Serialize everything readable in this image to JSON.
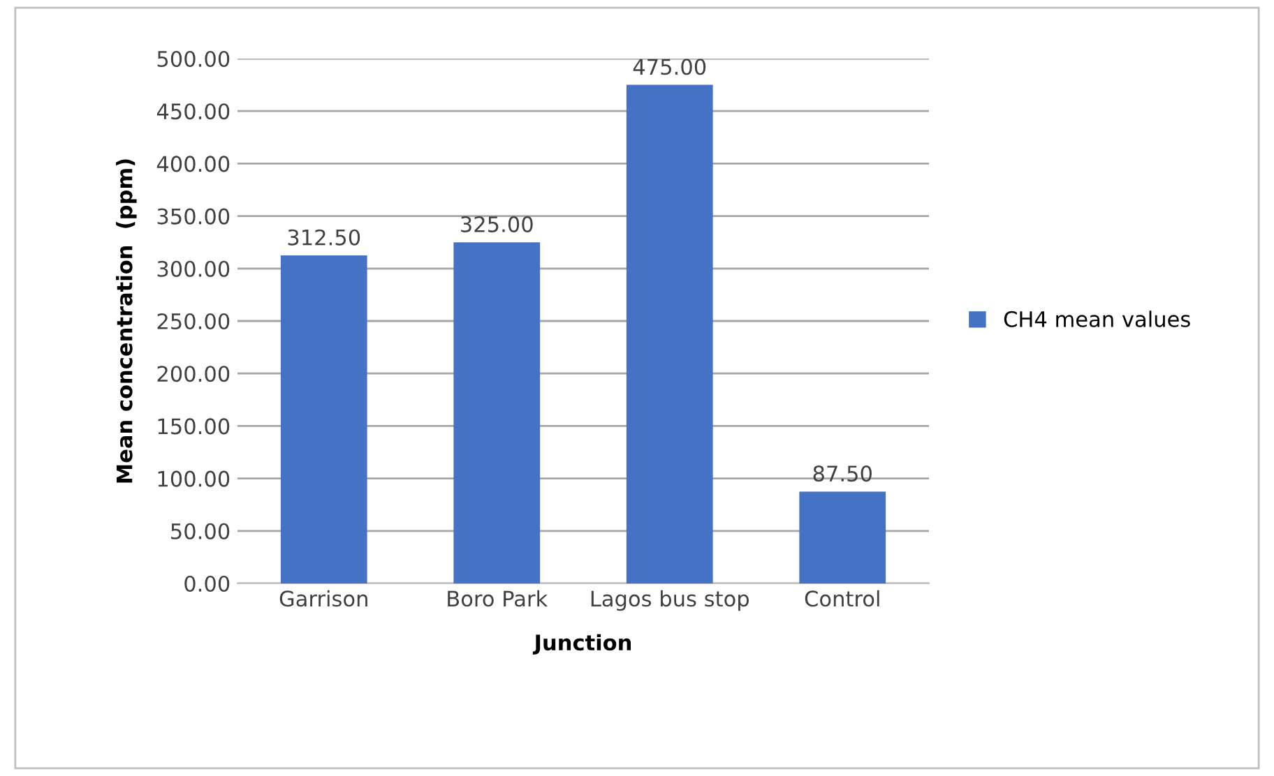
{
  "chart_data": {
    "type": "bar",
    "xlabel": "Junction",
    "ylabel": "Mean concentration  (ppm)",
    "categories": [
      "Garrison",
      "Boro Park",
      "Lagos bus stop",
      "Control"
    ],
    "series": [
      {
        "name": "CH4 mean values",
        "color": "#4472c4",
        "values": [
          312.5,
          325,
          475,
          87.5
        ],
        "value_labels": [
          "312.50",
          "325.00",
          "475.00",
          "87.50"
        ]
      }
    ],
    "ylim": [
      0,
      500
    ],
    "yticks": [
      {
        "value": 0,
        "label": "0.00"
      },
      {
        "value": 50,
        "label": "50.00"
      },
      {
        "value": 100,
        "label": "100.00"
      },
      {
        "value": 150,
        "label": "150.00"
      },
      {
        "value": 200,
        "label": "200.00"
      },
      {
        "value": 250,
        "label": "250.00"
      },
      {
        "value": 300,
        "label": "300.00"
      },
      {
        "value": 350,
        "label": "350.00"
      },
      {
        "value": 400,
        "label": "400.00"
      },
      {
        "value": 450,
        "label": "450.00"
      },
      {
        "value": 500,
        "label": "500.00"
      }
    ],
    "grid": "y",
    "legend": "right"
  }
}
